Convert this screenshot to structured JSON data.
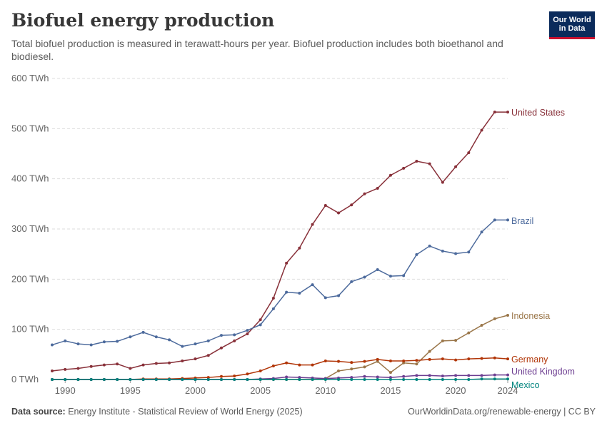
{
  "header": {
    "title": "Biofuel energy production",
    "subtitle": "Total biofuel production is measured in terawatt-hours per year. Biofuel production includes both bioethanol and biodiesel.",
    "logo_line1": "Our World",
    "logo_line2": "in Data"
  },
  "footer": {
    "source_label": "Data source:",
    "source_text": "Energy Institute - Statistical Review of World Energy (2025)",
    "url": "OurWorldinData.org/renewable-energy | CC BY"
  },
  "chart_data": {
    "type": "line",
    "title": "Biofuel energy production",
    "x": [
      1989,
      1990,
      1991,
      1992,
      1993,
      1994,
      1995,
      1996,
      1997,
      1998,
      1999,
      2000,
      2001,
      2002,
      2003,
      2004,
      2005,
      2006,
      2007,
      2008,
      2009,
      2010,
      2011,
      2012,
      2013,
      2014,
      2015,
      2016,
      2017,
      2018,
      2019,
      2020,
      2021,
      2022,
      2023,
      2024
    ],
    "x_ticks": [
      1990,
      1995,
      2000,
      2005,
      2010,
      2015,
      2020,
      2024
    ],
    "y_ticks": [
      0,
      100,
      200,
      300,
      400,
      500,
      600
    ],
    "y_tick_labels": [
      "0 TWh",
      "100 TWh",
      "200 TWh",
      "300 TWh",
      "400 TWh",
      "500 TWh",
      "600 TWh"
    ],
    "xlim": [
      1989,
      2024
    ],
    "ylim": [
      0,
      600
    ],
    "grid": "horizontal dashed",
    "series": [
      {
        "name": "United States",
        "color": "#883039",
        "values": [
          17,
          20,
          22,
          26,
          29,
          31,
          22,
          29,
          32,
          33,
          37,
          41,
          48,
          63,
          77,
          91,
          119,
          162,
          232,
          262,
          309,
          347,
          332,
          348,
          370,
          381,
          407,
          421,
          435,
          430,
          393,
          424,
          452,
          497,
          533,
          533
        ]
      },
      {
        "name": "Brazil",
        "color": "#4c6a9c",
        "values": [
          69,
          77,
          71,
          69,
          75,
          76,
          85,
          94,
          85,
          79,
          66,
          71,
          77,
          88,
          89,
          98,
          109,
          141,
          174,
          172,
          189,
          163,
          167,
          195,
          204,
          219,
          206,
          207,
          249,
          266,
          256,
          251,
          254,
          294,
          318,
          318
        ]
      },
      {
        "name": "Indonesia",
        "color": "#9a7649",
        "values": [
          0,
          0,
          0,
          0,
          0,
          0,
          0,
          0,
          0,
          0,
          0,
          0,
          0,
          0,
          0,
          0,
          0,
          0,
          0,
          0,
          0,
          2,
          17,
          21,
          25,
          36,
          14,
          33,
          31,
          56,
          77,
          78,
          93,
          108,
          121,
          128
        ]
      },
      {
        "name": "Germany",
        "color": "#b13507",
        "values": [
          0,
          0,
          0,
          0,
          0,
          0,
          0,
          1,
          1,
          1,
          2,
          3,
          4,
          6,
          7,
          11,
          17,
          27,
          33,
          29,
          29,
          37,
          36,
          34,
          36,
          40,
          37,
          37,
          38,
          40,
          41,
          39,
          41,
          42,
          43,
          41
        ]
      },
      {
        "name": "United Kingdom",
        "color": "#6d3e91",
        "values": [
          0,
          0,
          0,
          0,
          0,
          0,
          0,
          0,
          0,
          0,
          0,
          0,
          0,
          0,
          0,
          0,
          1,
          2,
          5,
          4,
          3,
          2,
          3,
          4,
          6,
          5,
          4,
          6,
          8,
          8,
          7,
          8,
          8,
          8,
          9,
          9
        ]
      },
      {
        "name": "Mexico",
        "color": "#00847e",
        "values": [
          0,
          0,
          0,
          0,
          0,
          0,
          0,
          0,
          0,
          0,
          0,
          0,
          0,
          0,
          0,
          0,
          0,
          0,
          0,
          0,
          0,
          0,
          0,
          0,
          0,
          0,
          0,
          0,
          0,
          0,
          0,
          0,
          0,
          1,
          1,
          1
        ]
      }
    ]
  }
}
